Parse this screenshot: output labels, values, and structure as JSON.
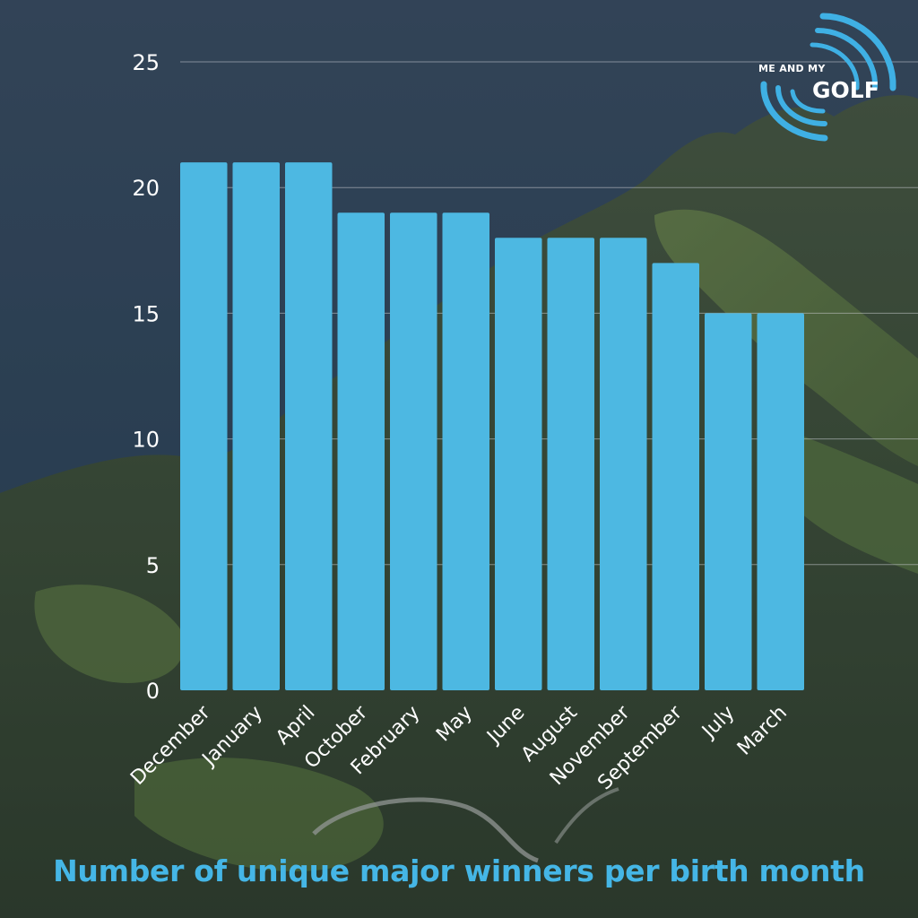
{
  "logo": {
    "line1": "ME AND MY",
    "line2": "GOLF"
  },
  "colors": {
    "bar": "#4db8e2",
    "caption": "#45b6e6",
    "logo_arc": "#3fb0e4",
    "grid": "#c8ccd0"
  },
  "chart_data": {
    "type": "bar",
    "title": "Number of unique major winners per birth month",
    "xlabel": "",
    "ylabel": "",
    "categories": [
      "December",
      "January",
      "April",
      "October",
      "February",
      "May",
      "June",
      "August",
      "November",
      "September",
      "July",
      "March"
    ],
    "values": [
      21,
      21,
      21,
      19,
      19,
      19,
      18,
      18,
      18,
      17,
      15,
      15
    ],
    "ylim": [
      0,
      25
    ],
    "yticks": [
      0,
      5,
      10,
      15,
      20,
      25
    ],
    "grid": true,
    "legend": "none"
  }
}
